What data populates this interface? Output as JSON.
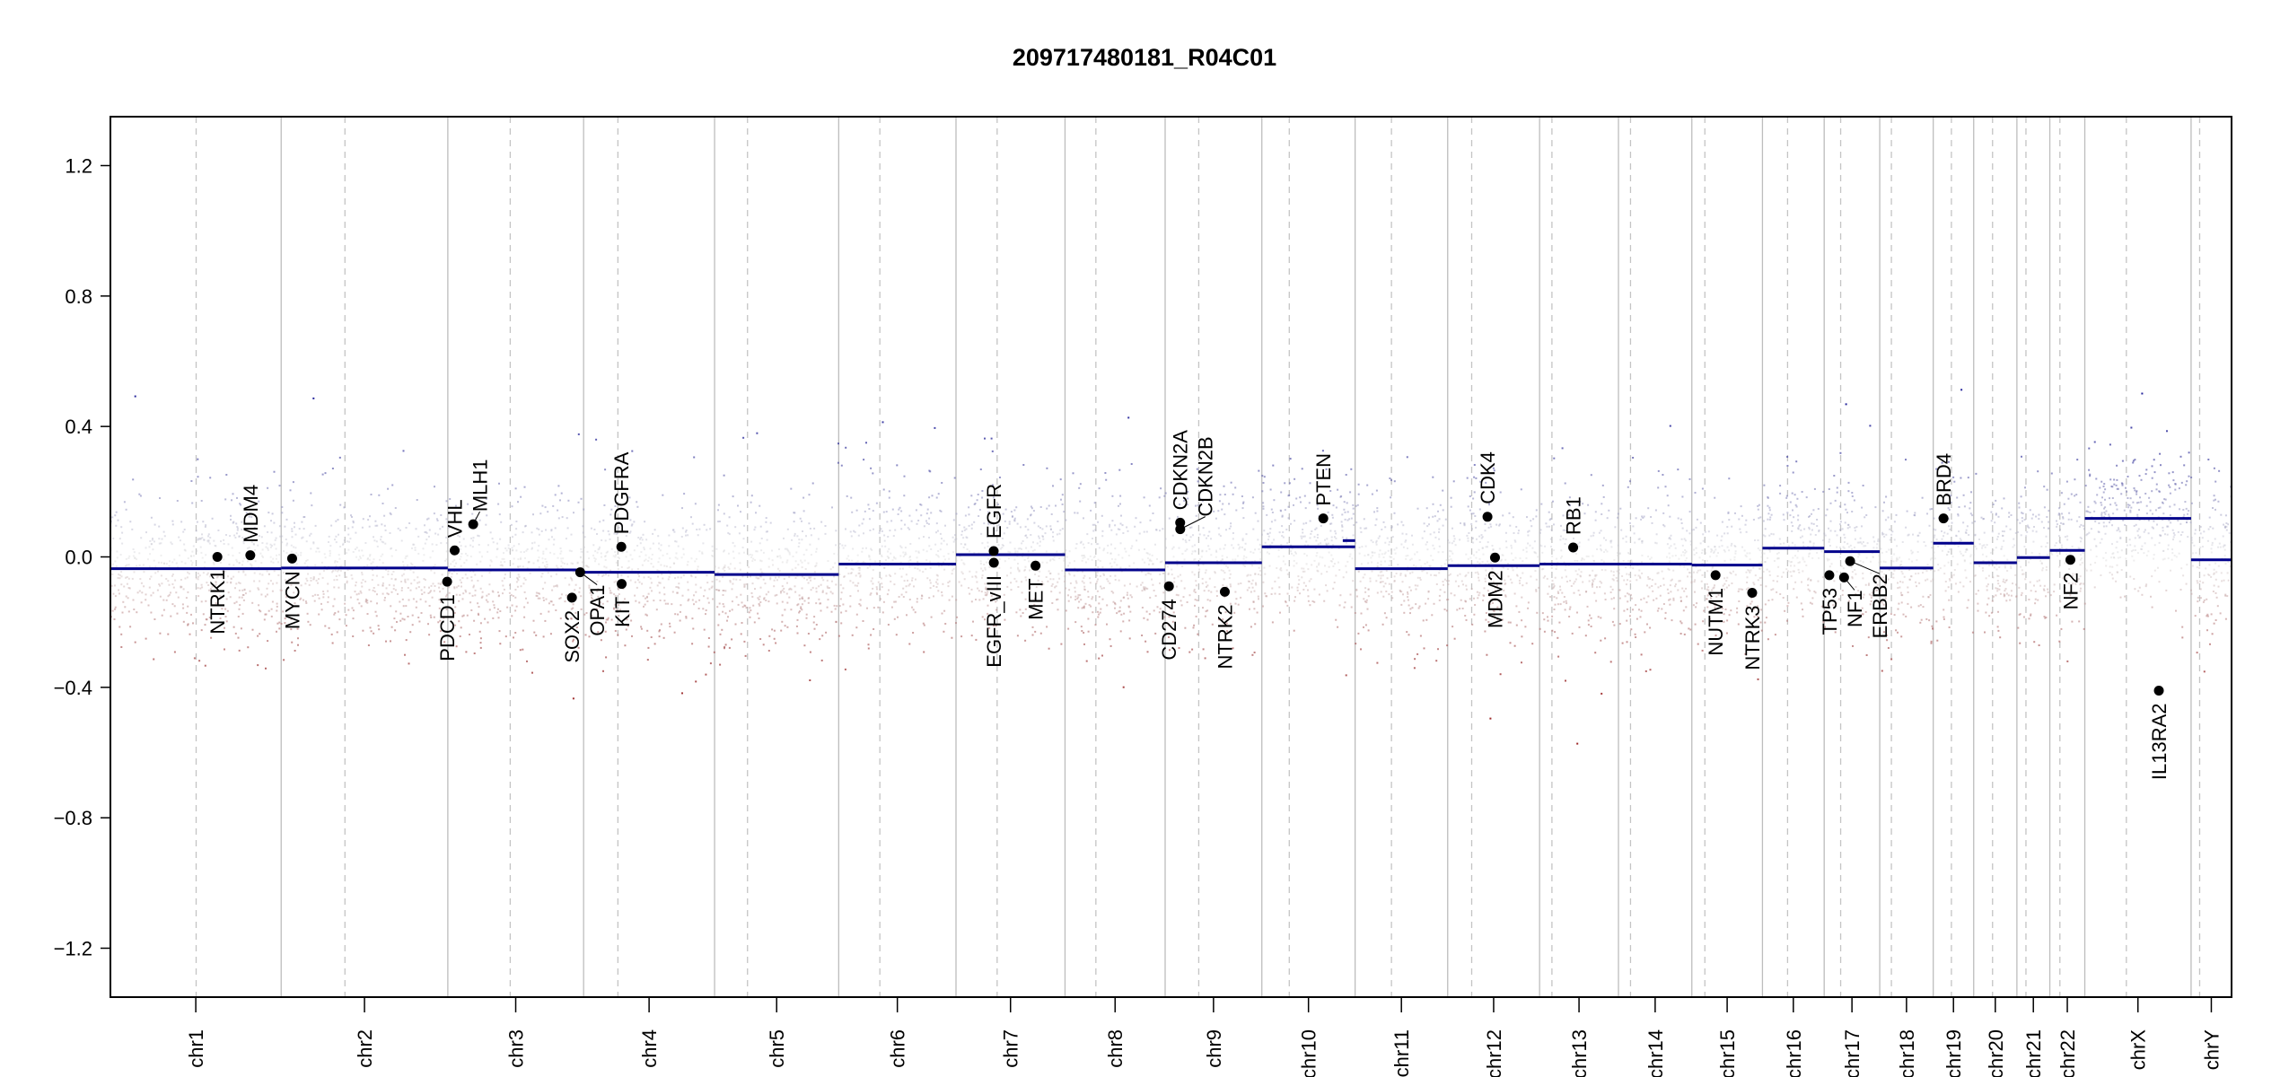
{
  "chart_data": {
    "type": "scatter",
    "title": "209717480181_R04C01",
    "xlabel": "",
    "ylabel": "",
    "ylim": [
      -1.35,
      1.35
    ],
    "yticks": [
      "-1.2",
      "-0.8",
      "-0.4",
      "0.0",
      "0.4",
      "0.8",
      "1.2"
    ],
    "grid": false,
    "legend": "none",
    "colors": {
      "gain": "#00008b",
      "loss": "#8b0000",
      "neutral": "#d3d3d3",
      "segment": "#00008b",
      "gene_point": "#000000"
    },
    "chromosomes": [
      {
        "name": "chr1",
        "length_mb": 249,
        "centromere_mb": 125,
        "segment": -0.036
      },
      {
        "name": "chr2",
        "length_mb": 243,
        "centromere_mb": 93,
        "segment": -0.034
      },
      {
        "name": "chr3",
        "length_mb": 198,
        "centromere_mb": 91,
        "segment": -0.04
      },
      {
        "name": "chr4",
        "length_mb": 191,
        "centromere_mb": 50,
        "segment": -0.047
      },
      {
        "name": "chr5",
        "length_mb": 181,
        "centromere_mb": 48,
        "segment": -0.054
      },
      {
        "name": "chr6",
        "length_mb": 171,
        "centromere_mb": 60,
        "segment": -0.022
      },
      {
        "name": "chr7",
        "length_mb": 159,
        "centromere_mb": 60,
        "segment": 0.007
      },
      {
        "name": "chr8",
        "length_mb": 146,
        "centromere_mb": 45,
        "segment": -0.04
      },
      {
        "name": "chr9",
        "length_mb": 141,
        "centromere_mb": 49,
        "segment": -0.018
      },
      {
        "name": "chr10",
        "length_mb": 136,
        "centromere_mb": 40,
        "segment": 0.031
      },
      {
        "name": "chr11",
        "length_mb": 135,
        "centromere_mb": 53,
        "segment": -0.036
      },
      {
        "name": "chr12",
        "length_mb": 134,
        "centromere_mb": 35,
        "segment": -0.027
      },
      {
        "name": "chr13",
        "length_mb": 115,
        "centromere_mb": 18,
        "segment": -0.022
      },
      {
        "name": "chr14",
        "length_mb": 107,
        "centromere_mb": 17.6,
        "segment": -0.022
      },
      {
        "name": "chr15",
        "length_mb": 103,
        "centromere_mb": 19,
        "segment": -0.025
      },
      {
        "name": "chr16",
        "length_mb": 90,
        "centromere_mb": 36.6,
        "segment": 0.027
      },
      {
        "name": "chr17",
        "length_mb": 81,
        "centromere_mb": 24,
        "segment": 0.016
      },
      {
        "name": "chr18",
        "length_mb": 78,
        "centromere_mb": 17,
        "segment": -0.034
      },
      {
        "name": "chr19",
        "length_mb": 59,
        "centromere_mb": 26.5,
        "segment": 0.042
      },
      {
        "name": "chr20",
        "length_mb": 63,
        "centromere_mb": 27.5,
        "segment": -0.018
      },
      {
        "name": "chr21",
        "length_mb": 48,
        "centromere_mb": 13.2,
        "segment": -0.002
      },
      {
        "name": "chr22",
        "length_mb": 51,
        "centromere_mb": 14.7,
        "segment": 0.02
      },
      {
        "name": "chrX",
        "length_mb": 155,
        "centromere_mb": 60.6,
        "segment": 0.118
      },
      {
        "name": "chrY",
        "length_mb": 59,
        "centromere_mb": 12.5,
        "segment": -0.009
      }
    ],
    "extra_segments": [
      {
        "chrom": "chr10",
        "start_mb": 118,
        "end_mb": 136,
        "value": 0.05
      }
    ],
    "genes": [
      {
        "name": "NTRK1",
        "chrom": "chr1",
        "pos_mb": 156,
        "value": 0.0,
        "label_side": "down"
      },
      {
        "name": "MDM4",
        "chrom": "chr1",
        "pos_mb": 204,
        "value": 0.005,
        "label_side": "up"
      },
      {
        "name": "MYCN",
        "chrom": "chr2",
        "pos_mb": 16,
        "value": -0.005,
        "label_side": "down"
      },
      {
        "name": "PDCD1",
        "chrom": "chr2",
        "pos_mb": 242,
        "value": -0.076,
        "label_side": "down"
      },
      {
        "name": "VHL",
        "chrom": "chr3",
        "pos_mb": 10,
        "value": 0.02,
        "label_side": "up"
      },
      {
        "name": "MLH1",
        "chrom": "chr3",
        "pos_mb": 37,
        "value": 0.1,
        "label_side": "up"
      },
      {
        "name": "SOX2",
        "chrom": "chr3",
        "pos_mb": 181,
        "value": -0.125,
        "label_side": "down"
      },
      {
        "name": "OPA1",
        "chrom": "chr3",
        "pos_mb": 193,
        "value": -0.047,
        "label_side": "down"
      },
      {
        "name": "PDGFRA",
        "chrom": "chr4",
        "pos_mb": 55,
        "value": 0.031,
        "label_side": "up"
      },
      {
        "name": "KIT",
        "chrom": "chr4",
        "pos_mb": 55.5,
        "value": -0.083,
        "label_side": "down"
      },
      {
        "name": "EGFR",
        "chrom": "chr7",
        "pos_mb": 55,
        "value": 0.018,
        "label_side": "up"
      },
      {
        "name": "EGFR_vIII",
        "chrom": "chr7",
        "pos_mb": 55.2,
        "value": -0.018,
        "label_side": "down"
      },
      {
        "name": "MET",
        "chrom": "chr7",
        "pos_mb": 116,
        "value": -0.027,
        "label_side": "down"
      },
      {
        "name": "CD274",
        "chrom": "chr9",
        "pos_mb": 5.5,
        "value": -0.09,
        "label_side": "down"
      },
      {
        "name": "CDKN2A",
        "chrom": "chr9",
        "pos_mb": 21.9,
        "value": 0.105,
        "label_side": "up"
      },
      {
        "name": "CDKN2B",
        "chrom": "chr9",
        "pos_mb": 22.0,
        "value": 0.085,
        "label_side": "up"
      },
      {
        "name": "NTRK2",
        "chrom": "chr9",
        "pos_mb": 87,
        "value": -0.107,
        "label_side": "down"
      },
      {
        "name": "PTEN",
        "chrom": "chr10",
        "pos_mb": 89.6,
        "value": 0.118,
        "label_side": "up"
      },
      {
        "name": "CDK4",
        "chrom": "chr12",
        "pos_mb": 58,
        "value": 0.123,
        "label_side": "up"
      },
      {
        "name": "MDM2",
        "chrom": "chr12",
        "pos_mb": 69,
        "value": -0.002,
        "label_side": "down"
      },
      {
        "name": "RB1",
        "chrom": "chr13",
        "pos_mb": 49,
        "value": 0.029,
        "label_side": "up"
      },
      {
        "name": "NUTM1",
        "chrom": "chr15",
        "pos_mb": 34.6,
        "value": -0.056,
        "label_side": "down"
      },
      {
        "name": "NTRK3",
        "chrom": "chr15",
        "pos_mb": 88,
        "value": -0.11,
        "label_side": "down"
      },
      {
        "name": "TP53",
        "chrom": "chr17",
        "pos_mb": 7.5,
        "value": -0.056,
        "label_side": "down"
      },
      {
        "name": "NF1",
        "chrom": "chr17",
        "pos_mb": 29,
        "value": -0.063,
        "label_side": "down"
      },
      {
        "name": "ERBB2",
        "chrom": "chr17",
        "pos_mb": 37.8,
        "value": -0.013,
        "label_side": "down"
      },
      {
        "name": "BRD4",
        "chrom": "chr19",
        "pos_mb": 15,
        "value": 0.118,
        "label_side": "up"
      },
      {
        "name": "NF2",
        "chrom": "chr22",
        "pos_mb": 30,
        "value": -0.009,
        "label_side": "down"
      },
      {
        "name": "IL13RA2",
        "chrom": "chrX",
        "pos_mb": 108,
        "value": -0.41,
        "label_side": "down"
      }
    ]
  }
}
